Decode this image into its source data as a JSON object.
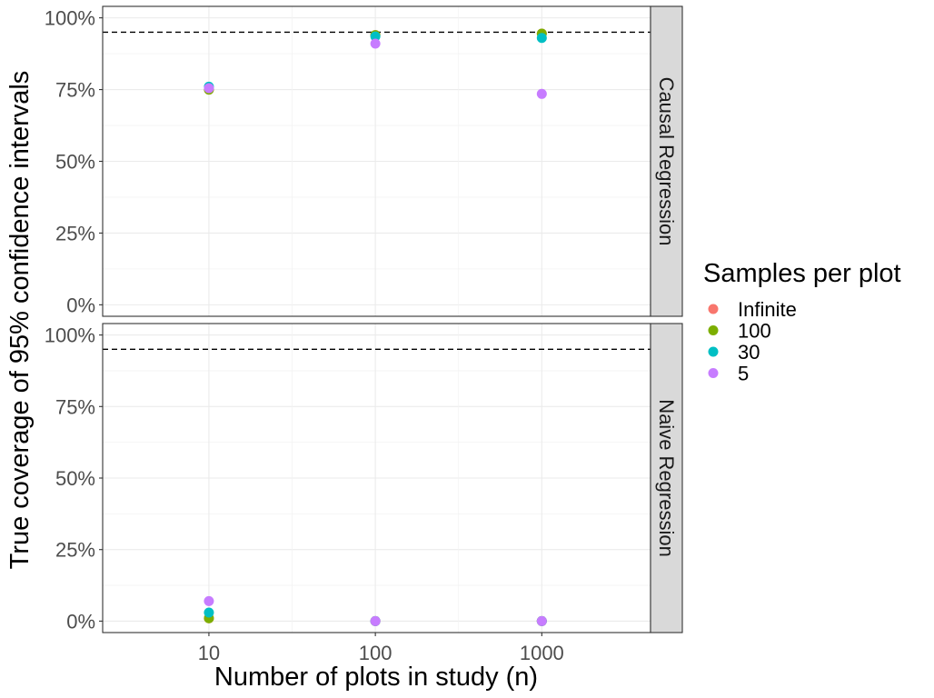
{
  "chart_data": {
    "type": "scatter",
    "ylabel": "True coverage of 95% confidence intervals",
    "xlabel": "Number of plots in study (n)",
    "x_scale": "log10",
    "x_ticks": [
      10,
      100,
      1000
    ],
    "x_tick_labels": [
      "10",
      "100",
      "1000"
    ],
    "xlim": [
      2.3,
      4500
    ],
    "ylim": [
      -0.04,
      1.04
    ],
    "y_ticks": [
      0,
      0.25,
      0.5,
      0.75,
      1.0
    ],
    "y_tick_labels": [
      "0%",
      "25%",
      "50%",
      "75%",
      "100%"
    ],
    "reference_line": 0.95,
    "grid": true,
    "legend": {
      "title": "Samples per plot",
      "position": "right",
      "entries": [
        {
          "label": "Infinite",
          "color": "#F8766D"
        },
        {
          "label": "100",
          "color": "#7CAE00"
        },
        {
          "label": "30",
          "color": "#00BFC4"
        },
        {
          "label": "5",
          "color": "#C77CFF"
        }
      ]
    },
    "panels": [
      {
        "label": "Causal Regression",
        "series": [
          {
            "name": "Infinite",
            "x": [
              10,
              100,
              1000
            ],
            "y": [
              0.75,
              0.94,
              0.945
            ]
          },
          {
            "name": "100",
            "x": [
              10,
              100,
              1000
            ],
            "y": [
              0.75,
              0.94,
              0.945
            ]
          },
          {
            "name": "30",
            "x": [
              10,
              100,
              1000
            ],
            "y": [
              0.76,
              0.935,
              0.93
            ]
          },
          {
            "name": "5",
            "x": [
              10,
              100,
              1000
            ],
            "y": [
              0.755,
              0.91,
              0.735
            ]
          }
        ]
      },
      {
        "label": "Naive Regression",
        "series": [
          {
            "name": "Infinite",
            "x": [
              10,
              100,
              1000
            ],
            "y": [
              0.01,
              0.0,
              0.0
            ]
          },
          {
            "name": "100",
            "x": [
              10,
              100,
              1000
            ],
            "y": [
              0.01,
              0.0,
              0.0
            ]
          },
          {
            "name": "30",
            "x": [
              10,
              100,
              1000
            ],
            "y": [
              0.03,
              0.0,
              0.0
            ]
          },
          {
            "name": "5",
            "x": [
              10,
              100,
              1000
            ],
            "y": [
              0.07,
              0.0,
              0.0
            ]
          }
        ]
      }
    ]
  }
}
